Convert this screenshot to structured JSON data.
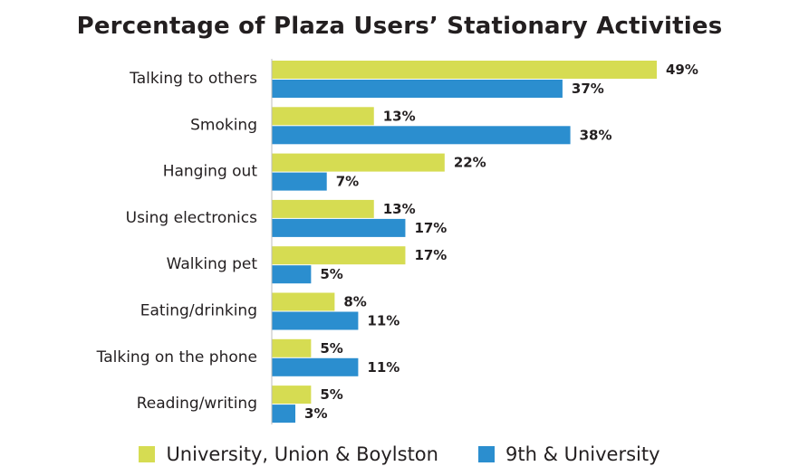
{
  "chart_data": {
    "type": "bar",
    "orientation": "horizontal",
    "title": "Percentage of Plaza Users’ Stationary Activities",
    "categories": [
      "Talking to others",
      "Smoking",
      "Hanging out",
      "Using electronics",
      "Walking pet",
      "Eating/drinking",
      "Talking on the phone",
      "Reading/writing"
    ],
    "series": [
      {
        "name": "University, Union & Boylston",
        "color": "#d6dc52",
        "values": [
          49,
          13,
          22,
          13,
          17,
          8,
          5,
          5
        ],
        "labels": [
          "49%",
          "13%",
          "22%",
          "13%",
          "17%",
          "8%",
          "5%",
          "5%"
        ]
      },
      {
        "name": "9th & University",
        "color": "#2b8ecf",
        "values": [
          37,
          38,
          7,
          17,
          5,
          11,
          11,
          3
        ],
        "labels": [
          "37%",
          "38%",
          "7%",
          "17%",
          "5%",
          "11%",
          "11%",
          "3%"
        ]
      }
    ],
    "xlim": [
      0,
      50
    ],
    "grid": false,
    "legend_position": "bottom"
  }
}
